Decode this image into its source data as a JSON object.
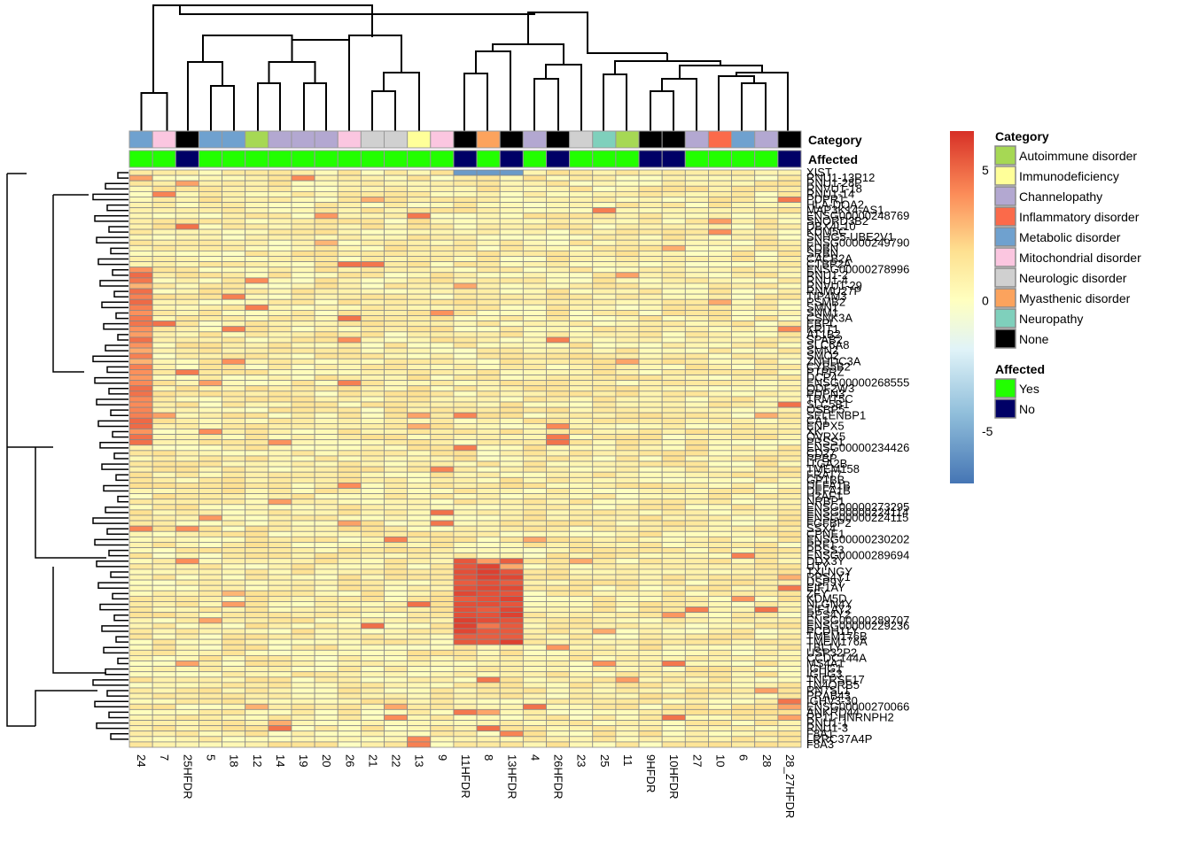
{
  "chart_data": {
    "type": "heatmap",
    "title": "",
    "columns": [
      "24",
      "7",
      "25HFDR",
      "5",
      "18",
      "12",
      "14",
      "19",
      "20",
      "26",
      "21",
      "22",
      "13",
      "9",
      "11HFDR",
      "8",
      "13HFDR",
      "4",
      "26HFDR",
      "23",
      "25",
      "11",
      "9HFDR",
      "10HFDR",
      "27",
      "10",
      "6",
      "28",
      "28_27HFDR"
    ],
    "column_category": [
      "Metabolic disorder",
      "Mitochondrial disorder",
      "None",
      "Metabolic disorder",
      "Metabolic disorder",
      "Autoimmune disorder",
      "Channelopathy",
      "Channelopathy",
      "Channelopathy",
      "Mitochondrial disorder",
      "Neurologic disorder",
      "Neurologic disorder",
      "Immunodeficiency",
      "Mitochondrial disorder",
      "None",
      "Myasthenic disorder",
      "None",
      "Channelopathy",
      "None",
      "Neurologic disorder",
      "Neuropathy",
      "Autoimmune disorder",
      "None",
      "None",
      "Channelopathy",
      "Inflammatory disorder",
      "Metabolic disorder",
      "Channelopathy",
      "None"
    ],
    "column_affected": [
      "Yes",
      "Yes",
      "No",
      "Yes",
      "Yes",
      "Yes",
      "Yes",
      "Yes",
      "Yes",
      "Yes",
      "Yes",
      "Yes",
      "Yes",
      "Yes",
      "No",
      "Yes",
      "No",
      "Yes",
      "No",
      "Yes",
      "Yes",
      "Yes",
      "No",
      "No",
      "Yes",
      "Yes",
      "Yes",
      "Yes",
      "No"
    ],
    "row_labels": [
      "XIST",
      "RNU1-13P12",
      "RNU1-28P",
      "RNVU1-18",
      "RNU1-14",
      "PDPR1",
      "HLA-DQA2",
      "MAP3K14-AS1",
      "ENSG00000248769",
      "SNORD3B2",
      "DBX4L10",
      "KDM5C",
      "SNHG5-UBE2V1",
      "ENSG00000249790",
      "KDBN",
      "SRBN",
      "CACB2A",
      "CTBP2A",
      "ENSG00000278996",
      "RNU1-2",
      "RNU1-4",
      "RNVU1-29",
      "RNMU27P",
      "TIP4M3",
      "PSMB2",
      "SMN1",
      "SNM1",
      "CSNK3A",
      "EBPL",
      "KRIT1",
      "AT1B2",
      "SPAB2",
      "SLC6A8",
      "SMN2",
      "SMO2",
      "ZNHDC3A",
      "CYB5B2",
      "PTPRZ",
      "DCP4",
      "ENSG00000268555",
      "ODF2W3",
      "PDPN3",
      "TRMT5C",
      "SLC5B1",
      "OSBP5",
      "SELENBP1",
      "CA1",
      "ENPX5",
      "XK",
      "OVRX5",
      "PRSS1",
      "ENSG00000234426",
      "CD27",
      "PPBP",
      "ITGA2B",
      "TMEM158",
      "FRAT7",
      "GP1BB",
      "DEFA1B",
      "DEFA1B",
      "H2AF1",
      "NRBP1",
      "ENSG00000273295",
      "ENSG00000224114",
      "ENSG00000224115",
      "FGFBP2",
      "SSX4",
      "CPNE1",
      "ENSG00000230202",
      "PRF1",
      "PRSS3",
      "ENSG00000289694",
      "DDX3Y",
      "UTY",
      "TXLNGY",
      "RPS4Y1",
      "USP9Y",
      "EIF1AY",
      "ZFY",
      "KDM5D",
      "NLGN4Y",
      "EIF1AY2",
      "RPS4Y2",
      "ENSG00000289707",
      "ENSG00000229236",
      "PCDH11Y",
      "TMEM176B",
      "TMEM176A",
      "TBL1Y",
      "USP32P2",
      "CCDC144A",
      "MS4A1",
      "IGHG1",
      "IGHG3",
      "TNFRSF17",
      "TN4ORB5",
      "RN7SL1",
      "PRAB43",
      "IGHV3-30",
      "ENSG00000270066",
      "ANKRD44",
      "RP11-HNRNPH2",
      "RNU1-1",
      "RNU1-3",
      "F8A1",
      "LRRC37A4P",
      "F8A3"
    ],
    "tick_row_labels": [
      "XIST",
      "RNU1-13P12",
      "RNU1-28P",
      "RNVU1-18",
      "RNU1-14",
      "PDPR1",
      "HLA-DQA2",
      "MAP3K14-AS1",
      "ENSG00000248769",
      "SNORD3B2",
      "DBX4L10",
      "KDM5C",
      "SNHG5-UBE2V1",
      "ENSG00000249790",
      "KDBN",
      "SRBN",
      "CACB2A",
      "CTBP2A",
      "ENSG00000278996",
      "RNU1-2",
      "RNU1-4",
      "RNVU1-29",
      "RNMU27P",
      "TIP4M3",
      "PSMB2",
      "SMN1",
      "SNM1",
      "CSNK3A",
      "EBPL",
      "KRIT1",
      "AT1B2",
      "SPAB2",
      "SLC6A8",
      "SMN2",
      "SMO2",
      "ZNHDC3A",
      "CYB5B2",
      "PTPRZ",
      "DCP4",
      "ENSG00000268555",
      "ODF2W3",
      "PDPN3",
      "TRMT5C",
      "SLC5B1",
      "OSBP5",
      "SELENBP1",
      "CA1",
      "ENPX5",
      "XK",
      "OVRX5",
      "PRSS1",
      "ENSG00000234426",
      "CD27",
      "PPBP",
      "ITGA2B",
      "TMEM158",
      "FRAT7",
      "GP1BB",
      "DEFA1B",
      "DEFA1B",
      "H2AF1",
      "NRBP1",
      "ENSG00000273295",
      "ENSG00000224114",
      "ENSG00000224115",
      "FGFBP2",
      "SSX4",
      "CPNE1",
      "ENSG00000230202",
      "PRF1",
      "PRSS3",
      "ENSG00000289694",
      "DDX3Y",
      "UTY",
      "TXLNGY",
      "RPS4Y1",
      "USP9Y",
      "EIF1AY",
      "ZFY",
      "KDM5D",
      "NLGN4Y",
      "EIF1AY2",
      "RPS4Y2",
      "ENSG00000289707",
      "ENSG00000229236",
      "PCDH11Y",
      "TMEM176B",
      "TMEM176A",
      "TBL1Y",
      "USP32P2",
      "CCDC144A",
      "MS4A1",
      "IGHG1",
      "IGHG3",
      "TNFRSF17",
      "TN4ORB5",
      "RN7SL1",
      "PRAB43",
      "IGHV3-30",
      "ENSG00000270066",
      "ANKRD44",
      "RP11-HNRNPH2",
      "RNU1-1",
      "RNU1-3",
      "F8A1",
      "LRRC37A4P",
      "F8A3"
    ],
    "annotation_titles": [
      "Category",
      "Affected"
    ],
    "colorbar": {
      "min": -7,
      "max": 6.5,
      "ticks": [
        5,
        0,
        -5
      ],
      "tick_labels": [
        "5",
        "0",
        "-5"
      ]
    },
    "palette": [
      "#4575b4",
      "#91bfdb",
      "#e0f3f8",
      "#ffffbf",
      "#fee090",
      "#fc8d59",
      "#d73027"
    ],
    "legend_category": {
      "title": "Category",
      "items": [
        {
          "label": "Autoimmune disorder",
          "color": "#a6d854"
        },
        {
          "label": "Immunodeficiency",
          "color": "#ffff99"
        },
        {
          "label": "Channelopathy",
          "color": "#b3a8d1"
        },
        {
          "label": "Inflammatory disorder",
          "color": "#fb6a4a"
        },
        {
          "label": "Metabolic disorder",
          "color": "#6fa1cf"
        },
        {
          "label": "Mitochondrial disorder",
          "color": "#fbc6e0"
        },
        {
          "label": "Neurologic disorder",
          "color": "#d0d0d0"
        },
        {
          "label": "Myasthenic disorder",
          "color": "#fca35d"
        },
        {
          "label": "Neuropathy",
          "color": "#7fd0bc"
        },
        {
          "label": "None",
          "color": "#000000"
        }
      ]
    },
    "legend_affected": {
      "title": "Affected",
      "items": [
        {
          "label": "Yes",
          "color": "#22ff00"
        },
        {
          "label": "No",
          "color": "#000066"
        }
      ]
    }
  }
}
